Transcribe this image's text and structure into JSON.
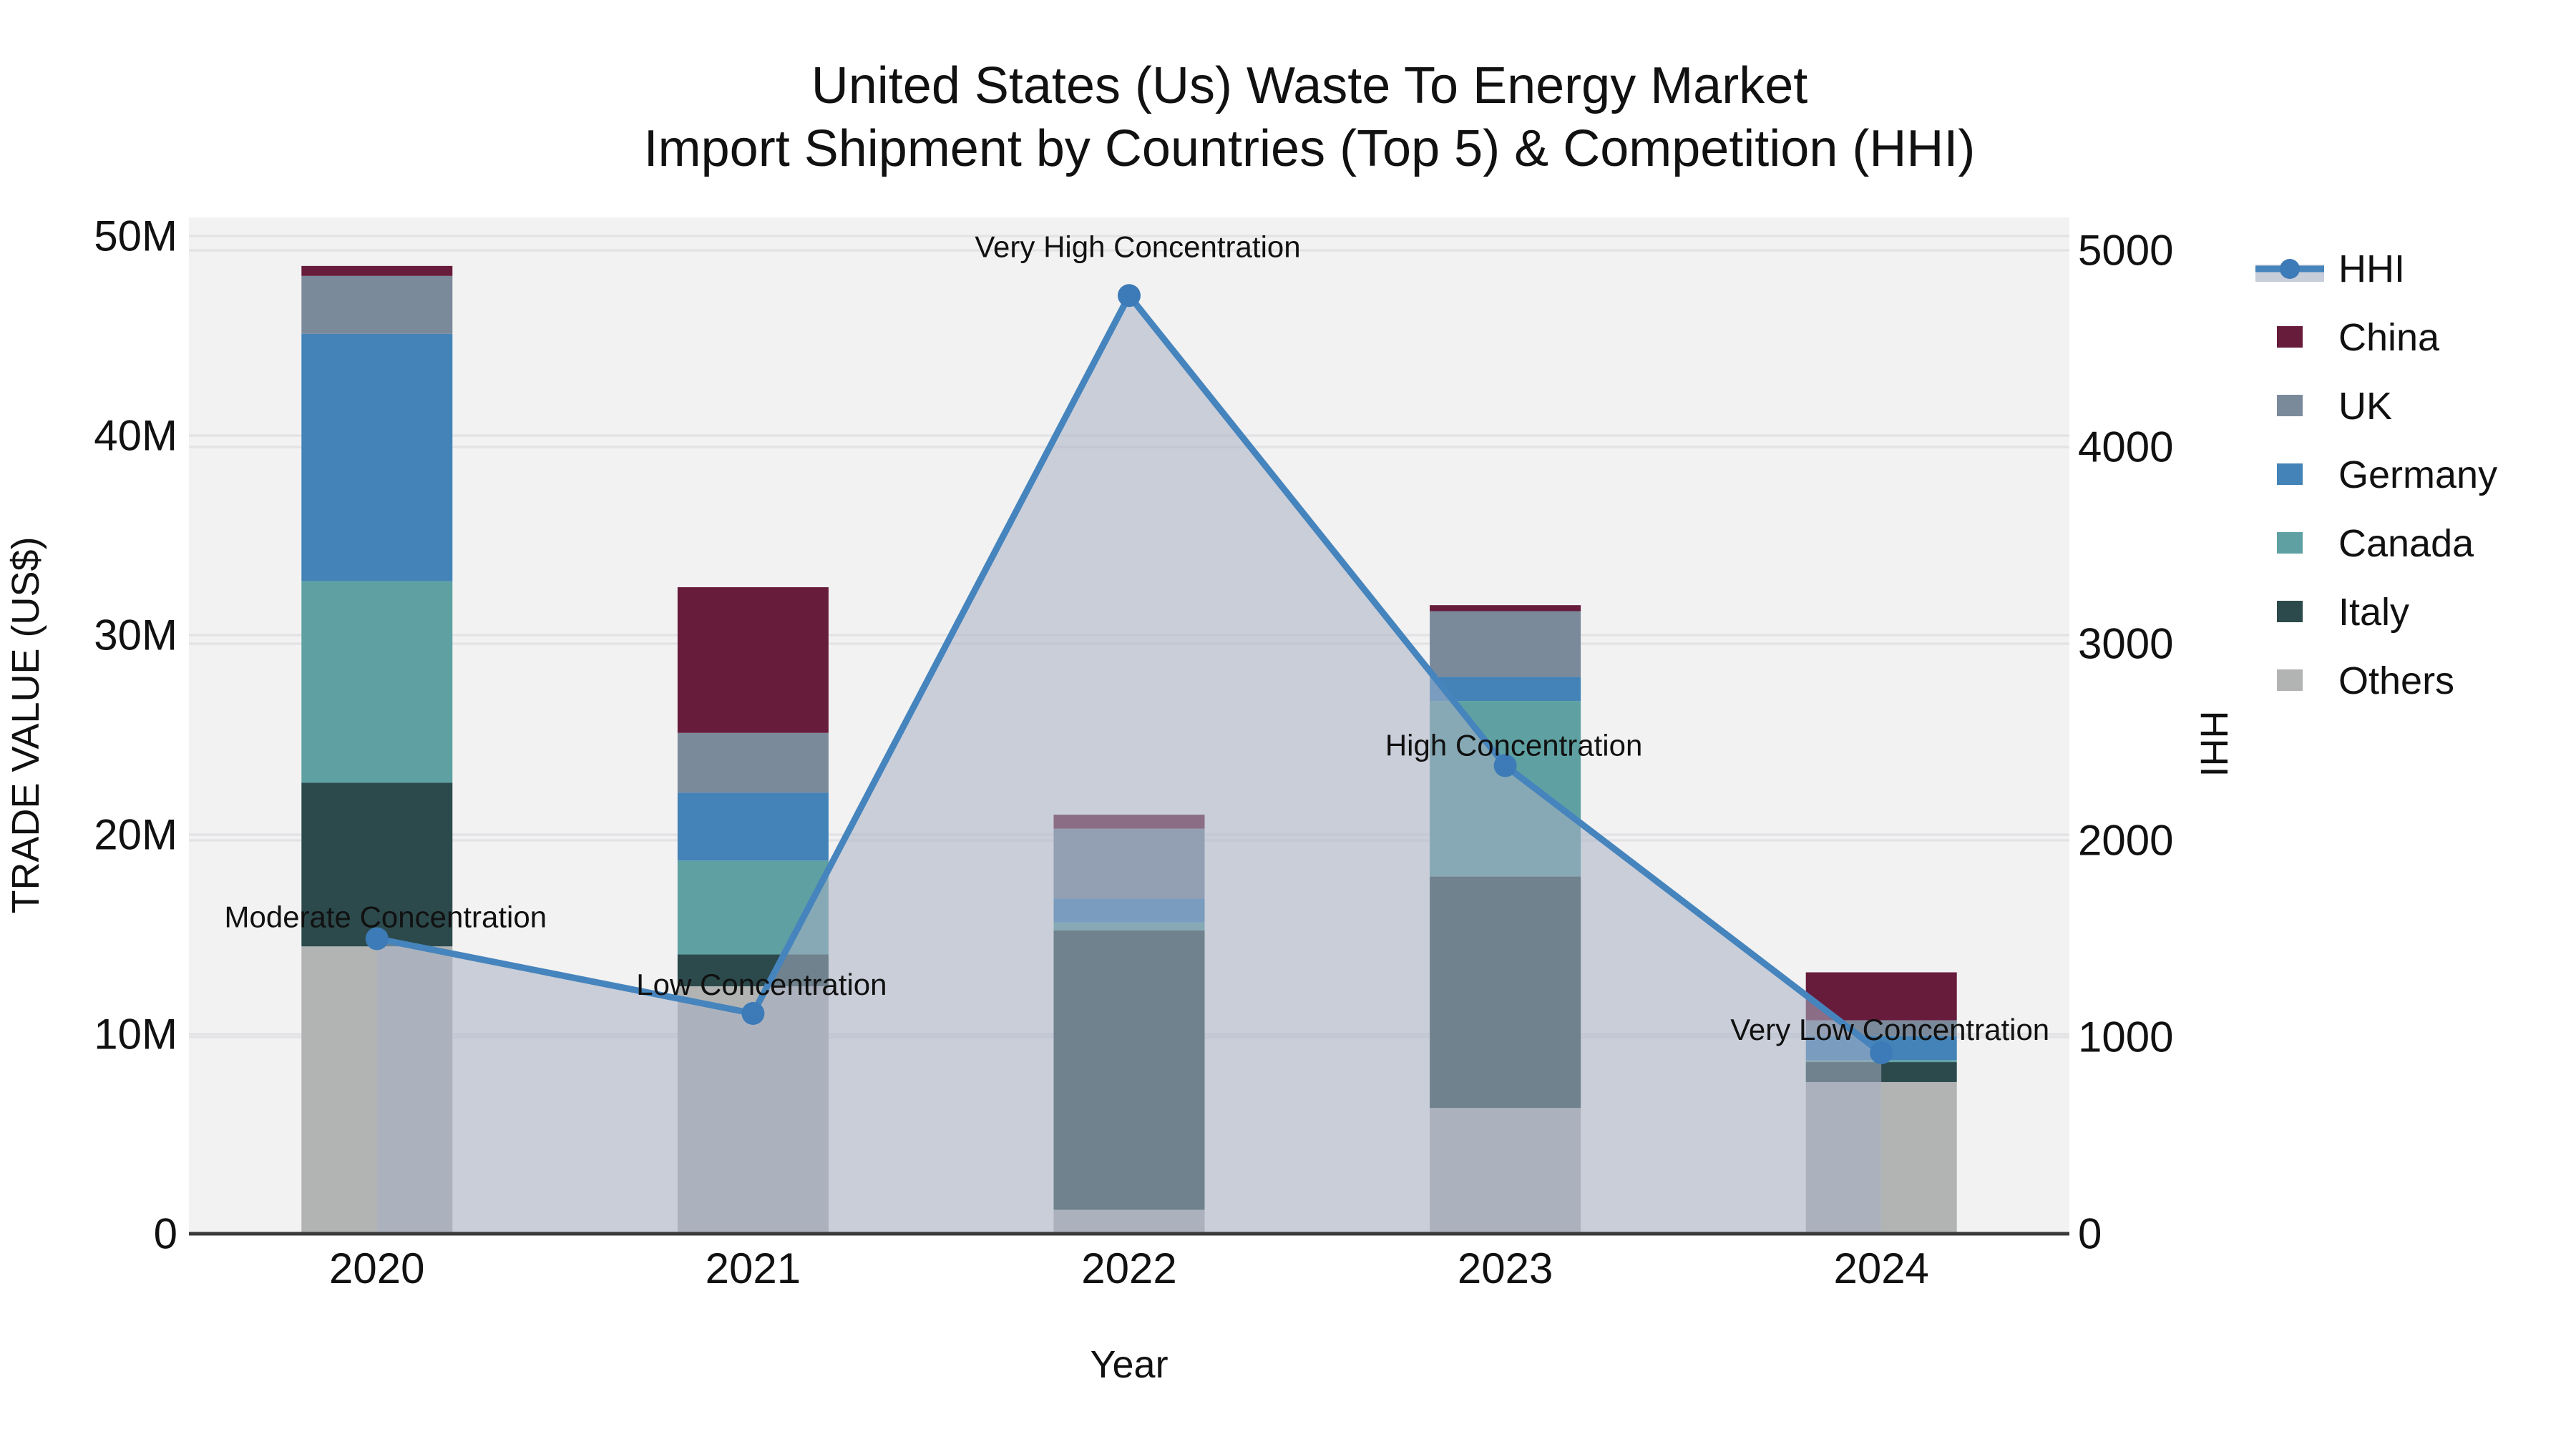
{
  "title": {
    "line1": "United States (Us) Waste To Energy Market",
    "line2": "Import Shipment by Countries (Top 5) & Competition (HHI)"
  },
  "chart_data": {
    "type": "bar+line",
    "x": [
      "2020",
      "2021",
      "2022",
      "2023",
      "2024"
    ],
    "xlabel": "Year",
    "ylabel_left": "TRADE VALUE (US$)",
    "ylabel_right": "HHI",
    "ylim_left_musd": [
      0,
      50
    ],
    "ylim_right": [
      0,
      5000
    ],
    "yticks_left": [
      "0",
      "10M",
      "20M",
      "30M",
      "40M",
      "50M"
    ],
    "yticks_right": [
      "0",
      "1000",
      "2000",
      "3000",
      "4000",
      "5000"
    ],
    "grid": true,
    "legend_position": "right",
    "bar_value_unit": "million US$",
    "series": [
      {
        "name": "Others",
        "color": "#b1b4b3",
        "values": [
          14.4,
          12.4,
          1.2,
          6.3,
          7.6
        ]
      },
      {
        "name": "Italy",
        "color": "#2c4a4c",
        "values": [
          8.2,
          1.6,
          14.0,
          11.6,
          1.0
        ]
      },
      {
        "name": "Canada",
        "color": "#5fa1a2",
        "values": [
          10.1,
          4.7,
          0.4,
          8.8,
          0.1
        ]
      },
      {
        "name": "Germany",
        "color": "#4383b7",
        "values": [
          12.4,
          3.4,
          1.2,
          1.2,
          1.2
        ]
      },
      {
        "name": "UK",
        "color": "#7b8a9b",
        "values": [
          2.9,
          3.0,
          3.5,
          3.3,
          0.8
        ]
      },
      {
        "name": "China",
        "color": "#681c3b",
        "values": [
          0.5,
          7.3,
          0.7,
          0.3,
          2.4
        ]
      }
    ],
    "hhi": {
      "name": "HHI",
      "values": [
        1500,
        1120,
        4770,
        2380,
        920
      ],
      "line_color": "#4684bd",
      "marker_color": "#3c7bb7",
      "area_color": "rgba(167,177,197,0.55)",
      "legend_swatch_color": "#c7cdd9"
    },
    "annotations": [
      {
        "x": "2020",
        "text": "Moderate Concentration"
      },
      {
        "x": "2021",
        "text": "Low Concentration"
      },
      {
        "x": "2022",
        "text": "Very High Concentration"
      },
      {
        "x": "2023",
        "text": "High Concentration"
      },
      {
        "x": "2024",
        "text": "Very Low Concentration"
      }
    ],
    "legend_order": [
      "HHI",
      "China",
      "UK",
      "Germany",
      "Canada",
      "Italy",
      "Others"
    ]
  },
  "colors": {
    "plot_background": "#f2f2f2",
    "gridline": "#e3e3e5",
    "axis_line": "#3a3a3a",
    "text": "#111111"
  }
}
